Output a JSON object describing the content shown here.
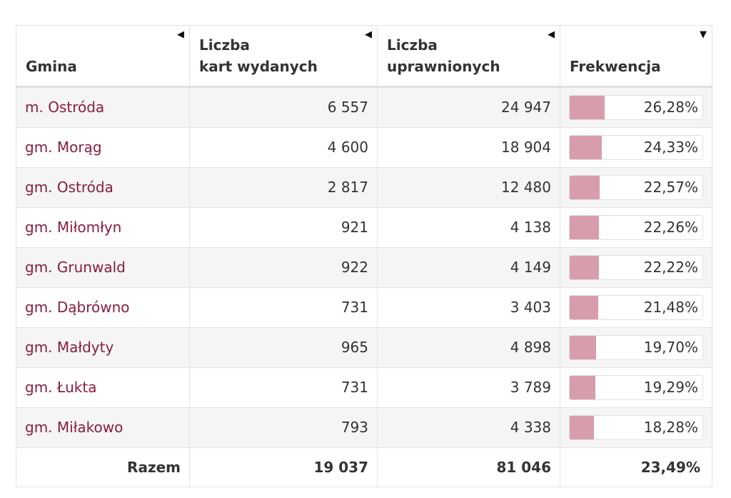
{
  "table": {
    "columns": [
      {
        "label": "Gmina",
        "sort_icon": "triangle-left-icon"
      },
      {
        "label": "Liczba\nkart wydanych",
        "sort_icon": "triangle-left-icon"
      },
      {
        "label": "Liczba\nuprawnionych",
        "sort_icon": "triangle-left-icon"
      },
      {
        "label": "Frekwencja",
        "sort_icon": "triangle-down-icon"
      }
    ],
    "rows": [
      {
        "gmina": "m. Ostróda",
        "karty": "6 557",
        "uprawnieni": "24 947",
        "frekwencja": "26,28%",
        "frekwencja_value": 26.28
      },
      {
        "gmina": "gm. Morąg",
        "karty": "4 600",
        "uprawnieni": "18 904",
        "frekwencja": "24,33%",
        "frekwencja_value": 24.33
      },
      {
        "gmina": "gm. Ostróda",
        "karty": "2 817",
        "uprawnieni": "12 480",
        "frekwencja": "22,57%",
        "frekwencja_value": 22.57
      },
      {
        "gmina": "gm. Miłomłyn",
        "karty": "921",
        "uprawnieni": "4 138",
        "frekwencja": "22,26%",
        "frekwencja_value": 22.26
      },
      {
        "gmina": "gm. Grunwald",
        "karty": "922",
        "uprawnieni": "4 149",
        "frekwencja": "22,22%",
        "frekwencja_value": 22.22
      },
      {
        "gmina": "gm. Dąbrówno",
        "karty": "731",
        "uprawnieni": "3 403",
        "frekwencja": "21,48%",
        "frekwencja_value": 21.48
      },
      {
        "gmina": "gm. Małdyty",
        "karty": "965",
        "uprawnieni": "4 898",
        "frekwencja": "19,70%",
        "frekwencja_value": 19.7
      },
      {
        "gmina": "gm. Łukta",
        "karty": "731",
        "uprawnieni": "3 789",
        "frekwencja": "19,29%",
        "frekwencja_value": 19.29
      },
      {
        "gmina": "gm. Miłakowo",
        "karty": "793",
        "uprawnieni": "4 338",
        "frekwencja": "18,28%",
        "frekwencja_value": 18.28
      }
    ],
    "totals": {
      "label": "Razem",
      "karty": "19 037",
      "uprawnieni": "81 046",
      "frekwencja": "23,49%"
    }
  },
  "colors": {
    "link": "#8b1c3f",
    "bar_fill": "#d89dac",
    "row_stripe": "#f5f5f5",
    "border": "#e3e3e3"
  }
}
